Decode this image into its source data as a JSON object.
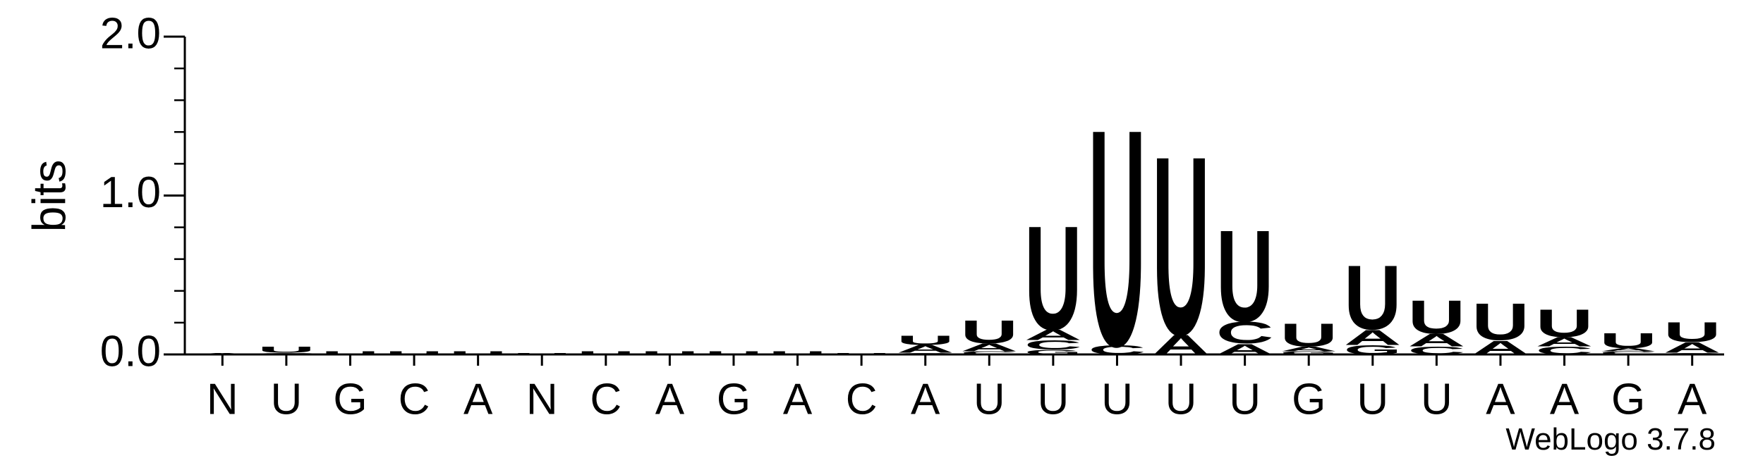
{
  "chart_data": {
    "type": "logo",
    "ylabel": "bits",
    "footer": "WebLogo 3.7.8",
    "ylim": [
      0,
      2
    ],
    "yticks": [
      {
        "value": 0,
        "label": "0.0"
      },
      {
        "value": 1,
        "label": "1.0"
      },
      {
        "value": 2,
        "label": "2.0"
      }
    ],
    "minor_yticks": [
      0.2,
      0.4,
      0.6,
      0.8,
      1.2,
      1.4,
      1.6,
      1.8
    ],
    "colors": {
      "A": "#ff8c00",
      "U": "#ff8c00",
      "C": "#0000cc",
      "G": "#0000cc"
    },
    "categories": [
      "N",
      "U",
      "G",
      "C",
      "A",
      "N",
      "C",
      "A",
      "G",
      "A",
      "C",
      "A",
      "U",
      "U",
      "U",
      "U",
      "U",
      "G",
      "U",
      "U",
      "A",
      "A",
      "G",
      "A"
    ],
    "stacks": [
      [
        {
          "letter": "A",
          "bits": 0.01
        }
      ],
      [
        {
          "letter": "C",
          "bits": 0.01
        },
        {
          "letter": "U",
          "bits": 0.04
        }
      ],
      [
        {
          "letter": "U",
          "bits": 0.02
        }
      ],
      [
        {
          "letter": "U",
          "bits": 0.02
        }
      ],
      [
        {
          "letter": "U",
          "bits": 0.02
        }
      ],
      [
        {
          "letter": "U",
          "bits": 0.01
        }
      ],
      [
        {
          "letter": "U",
          "bits": 0.02
        }
      ],
      [
        {
          "letter": "U",
          "bits": 0.02
        }
      ],
      [
        {
          "letter": "U",
          "bits": 0.02
        }
      ],
      [
        {
          "letter": "U",
          "bits": 0.02
        }
      ],
      [
        {
          "letter": "U",
          "bits": 0.01
        }
      ],
      [
        {
          "letter": "C",
          "bits": 0.01
        },
        {
          "letter": "A",
          "bits": 0.05
        },
        {
          "letter": "U",
          "bits": 0.06
        }
      ],
      [
        {
          "letter": "C",
          "bits": 0.02
        },
        {
          "letter": "A",
          "bits": 0.05
        },
        {
          "letter": "U",
          "bits": 0.15
        }
      ],
      [
        {
          "letter": "G",
          "bits": 0.03
        },
        {
          "letter": "C",
          "bits": 0.06
        },
        {
          "letter": "A",
          "bits": 0.07
        },
        {
          "letter": "U",
          "bits": 0.68
        }
      ],
      [
        {
          "letter": "C",
          "bits": 0.06
        },
        {
          "letter": "U",
          "bits": 1.42
        }
      ],
      [
        {
          "letter": "A",
          "bits": 0.13
        },
        {
          "letter": "U",
          "bits": 1.17
        }
      ],
      [
        {
          "letter": "A",
          "bits": 0.07
        },
        {
          "letter": "C",
          "bits": 0.14
        },
        {
          "letter": "U",
          "bits": 0.6
        }
      ],
      [
        {
          "letter": "G",
          "bits": 0.02
        },
        {
          "letter": "A",
          "bits": 0.03
        },
        {
          "letter": "U",
          "bits": 0.15
        }
      ],
      [
        {
          "letter": "G",
          "bits": 0.06
        },
        {
          "letter": "A",
          "bits": 0.1
        },
        {
          "letter": "U",
          "bits": 0.42
        }
      ],
      [
        {
          "letter": "C",
          "bits": 0.05
        },
        {
          "letter": "A",
          "bits": 0.08
        },
        {
          "letter": "U",
          "bits": 0.22
        }
      ],
      [
        {
          "letter": "A",
          "bits": 0.09
        },
        {
          "letter": "U",
          "bits": 0.24
        }
      ],
      [
        {
          "letter": "C",
          "bits": 0.05
        },
        {
          "letter": "A",
          "bits": 0.06
        },
        {
          "letter": "U",
          "bits": 0.18
        }
      ],
      [
        {
          "letter": "C",
          "bits": 0.02
        },
        {
          "letter": "A",
          "bits": 0.02
        },
        {
          "letter": "U",
          "bits": 0.1
        }
      ],
      [
        {
          "letter": "C",
          "bits": 0.01
        },
        {
          "letter": "A",
          "bits": 0.07
        },
        {
          "letter": "U",
          "bits": 0.13
        }
      ]
    ]
  }
}
